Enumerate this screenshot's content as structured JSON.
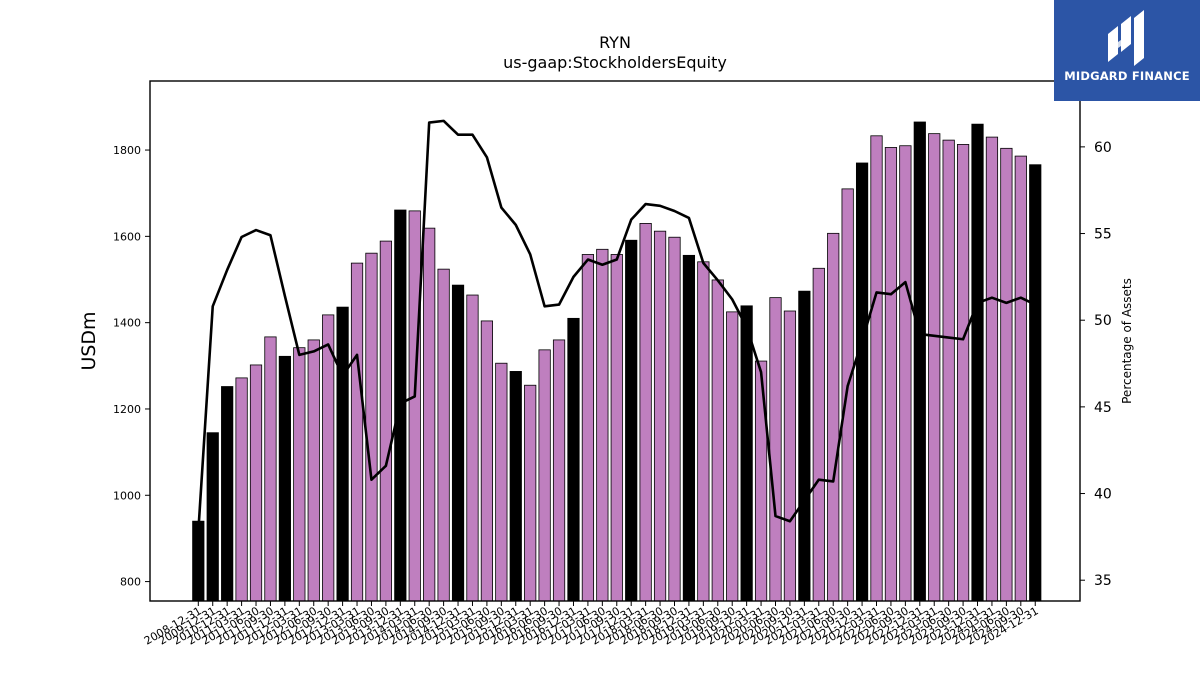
{
  "chart_data": {
    "type": "bar",
    "title": "RYN",
    "subtitle": "us-gaap:StockholdersEquity",
    "ylabel": "USDm",
    "y2label": "Percentage of Assets",
    "ylim": [
      755,
      1960
    ],
    "y2lim": [
      33.8,
      63.8
    ],
    "yticks": [
      800,
      1000,
      1200,
      1400,
      1600,
      1800
    ],
    "y2ticks": [
      35,
      40,
      45,
      50,
      55,
      60
    ],
    "categories": [
      "2008-12-31",
      "2009-12-31",
      "2010-12-31",
      "2011-03-31",
      "2011-06-30",
      "2011-09-30",
      "2011-12-31",
      "2012-03-31",
      "2012-06-30",
      "2012-09-30",
      "2012-12-31",
      "2013-03-31",
      "2013-06-30",
      "2013-09-30",
      "2013-12-31",
      "2014-03-31",
      "2014-06-30",
      "2014-09-30",
      "2014-12-31",
      "2015-03-31",
      "2015-06-30",
      "2015-09-30",
      "2015-12-31",
      "2016-03-31",
      "2016-06-30",
      "2016-09-30",
      "2016-12-31",
      "2017-03-31",
      "2017-06-30",
      "2017-09-30",
      "2017-12-31",
      "2018-03-31",
      "2018-06-30",
      "2018-09-30",
      "2018-12-31",
      "2019-03-31",
      "2019-06-30",
      "2019-09-30",
      "2019-12-31",
      "2020-03-31",
      "2020-06-30",
      "2020-09-30",
      "2020-12-31",
      "2021-03-31",
      "2021-06-30",
      "2021-09-30",
      "2021-12-31",
      "2022-03-31",
      "2022-06-30",
      "2022-09-30",
      "2022-12-31",
      "2023-03-31",
      "2023-06-30",
      "2023-09-30",
      "2023-12-31",
      "2024-03-31",
      "2024-06-30",
      "2024-09-30",
      "2024-12-31"
    ],
    "series": [
      {
        "role": "bars",
        "values": [
          940,
          1145,
          1252,
          1272,
          1302,
          1367,
          1322,
          1342,
          1360,
          1418,
          1436,
          1538,
          1561,
          1589,
          1661,
          1659,
          1619,
          1524,
          1487,
          1464,
          1404,
          1306,
          1287,
          1255,
          1337,
          1360,
          1410,
          1558,
          1570,
          1558,
          1591,
          1630,
          1612,
          1598,
          1556,
          1541,
          1499,
          1425,
          1439,
          1311,
          1458,
          1427,
          1473,
          1526,
          1607,
          1710,
          1770,
          1833,
          1806,
          1810,
          1865,
          1838,
          1823,
          1813,
          1860,
          1830,
          1804,
          1786,
          1766
        ],
        "annual_flags": [
          1,
          1,
          1,
          0,
          0,
          0,
          1,
          0,
          0,
          0,
          1,
          0,
          0,
          0,
          1,
          0,
          0,
          0,
          1,
          0,
          0,
          0,
          1,
          0,
          0,
          0,
          1,
          0,
          0,
          0,
          1,
          0,
          0,
          0,
          1,
          0,
          0,
          0,
          1,
          0,
          0,
          0,
          1,
          0,
          0,
          0,
          1,
          0,
          0,
          0,
          1,
          0,
          0,
          0,
          1,
          0,
          0,
          0,
          1
        ],
        "color_annual": "#000000",
        "color_quarterly": "#bf7fbf"
      },
      {
        "role": "line",
        "axis": "right",
        "values": [
          37.8,
          50.8,
          52.9,
          54.8,
          55.2,
          54.9,
          51.4,
          48.0,
          48.2,
          48.6,
          46.8,
          48.0,
          40.8,
          41.6,
          45.2,
          45.6,
          61.4,
          61.5,
          60.7,
          60.7,
          59.4,
          56.5,
          55.5,
          53.8,
          50.8,
          50.9,
          52.5,
          53.5,
          53.2,
          53.5,
          55.8,
          56.7,
          56.6,
          56.3,
          55.9,
          53.3,
          52.3,
          51.2,
          49.6,
          47.0,
          38.7,
          38.4,
          39.6,
          40.8,
          40.7,
          46.2,
          48.8,
          51.6,
          51.5,
          52.2,
          49.2,
          49.1,
          49.0,
          48.9,
          51.0,
          51.3,
          51.0,
          51.3,
          50.9
        ]
      }
    ],
    "colors": {
      "line": "#000000"
    }
  },
  "logo": {
    "text": "MIDGARD FINANCE",
    "background": "#2c55a6"
  }
}
